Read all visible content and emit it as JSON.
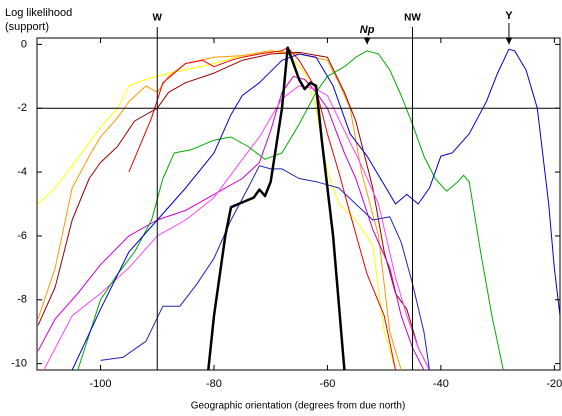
{
  "chart_data": {
    "type": "line",
    "y_label": [
      "Log likelihood",
      "(support)"
    ],
    "x_label": "Geographic orientation (degrees from due north)",
    "xlim": [
      -111.2,
      -19
    ],
    "ylim": [
      -10.2,
      0.2
    ],
    "xticks": [
      -100,
      -80,
      -60,
      -40,
      -20
    ],
    "yticks": [
      0,
      -2,
      -4,
      -6,
      -8,
      -10
    ],
    "hlines": [
      -2
    ],
    "annotations": [
      {
        "label": "W",
        "x": -90,
        "kind": "vline"
      },
      {
        "label": "NW",
        "x": -45,
        "kind": "vline"
      },
      {
        "label": "Np",
        "x": -53,
        "y": 0,
        "kind": "arrow"
      },
      {
        "label": "Y",
        "x": -28,
        "y": 0,
        "kind": "arrow"
      }
    ],
    "series": [
      {
        "color": "#ffff00",
        "x": [
          -111,
          -108,
          -105,
          -100,
          -97,
          -95,
          -92,
          -88,
          -85,
          -80,
          -75,
          -70,
          -67,
          -64,
          -62,
          -60,
          -58,
          -55,
          -52,
          -50,
          -48
        ],
        "values": [
          -5,
          -4.5,
          -3.8,
          -2.6,
          -2.0,
          -1.3,
          -1.1,
          -0.9,
          -0.8,
          -0.6,
          -0.35,
          -0.2,
          -0.3,
          -0.9,
          -2,
          -4,
          -5,
          -5.5,
          -6.3,
          -9,
          -10.2
        ]
      },
      {
        "color": "#ff9900",
        "x": [
          -111,
          -108,
          -105,
          -102,
          -100,
          -97,
          -95,
          -92,
          -90,
          -88,
          -85,
          -80,
          -75,
          -70,
          -65,
          -60,
          -58,
          -56,
          -54,
          -51,
          -49,
          -47
        ],
        "values": [
          -8.6,
          -7,
          -4.5,
          -3.5,
          -2.9,
          -2.3,
          -1.8,
          -1.3,
          -1.5,
          -1,
          -0.6,
          -0.4,
          -0.35,
          -0.2,
          -0.3,
          -0.5,
          -1.2,
          -2,
          -4,
          -6,
          -9,
          -10.2
        ]
      },
      {
        "color": "#990000",
        "x": [
          -111,
          -108,
          -105,
          -102,
          -100,
          -97,
          -94,
          -90,
          -88,
          -85,
          -80,
          -75,
          -70,
          -65,
          -60,
          -57,
          -55,
          -52,
          -50,
          -48,
          -46,
          -44,
          -42
        ],
        "values": [
          -8.8,
          -7.6,
          -5.5,
          -4.2,
          -3.7,
          -3.2,
          -2.4,
          -2,
          -1.5,
          -1.2,
          -0.9,
          -0.5,
          -0.3,
          -0.25,
          -0.4,
          -1.5,
          -2.4,
          -4.5,
          -6.5,
          -7.8,
          -8.3,
          -9.5,
          -10.2
        ]
      },
      {
        "color": "#ee0000",
        "x": [
          -95,
          -91,
          -89,
          -87,
          -85,
          -82,
          -80,
          -77,
          -75,
          -72,
          -70,
          -68,
          -67,
          -65,
          -62,
          -60,
          -58,
          -56,
          -53,
          -50,
          -48
        ],
        "values": [
          -4,
          -2.3,
          -1.2,
          -0.9,
          -0.6,
          -0.5,
          -0.7,
          -0.5,
          -0.4,
          -0.3,
          -0.25,
          -0.2,
          -0.1,
          -0.5,
          -1.4,
          -2.8,
          -4,
          -5.3,
          -7.2,
          -8.5,
          -10.2
        ]
      },
      {
        "color": "#cc00cc",
        "x": [
          -111,
          -108,
          -104,
          -100,
          -95,
          -90,
          -85,
          -80,
          -75,
          -72,
          -70,
          -68,
          -66,
          -64,
          -62,
          -60,
          -57,
          -55,
          -52,
          -49,
          -47,
          -45,
          -43
        ],
        "values": [
          -9.6,
          -8.6,
          -7.8,
          -6.9,
          -6,
          -5.5,
          -5.2,
          -4.7,
          -4.2,
          -3.7,
          -2.7,
          -1.5,
          -1,
          -1.1,
          -1.5,
          -2,
          -3.4,
          -4.2,
          -5.8,
          -7,
          -8.5,
          -9.5,
          -10.2
        ]
      },
      {
        "color": "#ff44ff",
        "x": [
          -110,
          -105,
          -100,
          -95,
          -90,
          -85,
          -80,
          -75,
          -72,
          -70,
          -68,
          -65,
          -62,
          -60,
          -57,
          -54,
          -51,
          -48,
          -46,
          -44,
          -42
        ],
        "values": [
          -10.2,
          -8.5,
          -7.8,
          -7,
          -6,
          -5.5,
          -4.8,
          -3.6,
          -2.9,
          -2.3,
          -1.7,
          -1.3,
          -1.4,
          -1.6,
          -2.7,
          -3.8,
          -5,
          -7.3,
          -8.5,
          -9.5,
          -10.2
        ]
      },
      {
        "color": "#00aa00",
        "x": [
          -104,
          -100,
          -97,
          -94,
          -91,
          -89,
          -87,
          -84,
          -80,
          -77,
          -74,
          -71,
          -68,
          -65,
          -62,
          -60,
          -57,
          -55,
          -53,
          -51,
          -49,
          -47,
          -45,
          -43,
          -41,
          -39,
          -37,
          -36,
          -35,
          -33,
          -31,
          -29
        ],
        "values": [
          -10.2,
          -8,
          -7.2,
          -6.5,
          -5.5,
          -4.2,
          -3.4,
          -3.3,
          -3,
          -2.9,
          -3.2,
          -3.6,
          -3.4,
          -2.5,
          -1.5,
          -1,
          -0.7,
          -0.4,
          -0.2,
          -0.3,
          -0.8,
          -1.6,
          -2.5,
          -3.5,
          -4.2,
          -4.6,
          -4.3,
          -4.1,
          -4.3,
          -6.5,
          -8.5,
          -10.2
        ]
      },
      {
        "color": "#0000cc",
        "x": [
          -105,
          -100,
          -95,
          -90,
          -85,
          -80,
          -77,
          -75,
          -72,
          -68,
          -65,
          -62,
          -59,
          -56,
          -53,
          -50,
          -48,
          -46,
          -44,
          -42,
          -40,
          -38,
          -35,
          -32,
          -30,
          -28,
          -27,
          -25,
          -23,
          -21,
          -20,
          -19
        ],
        "values": [
          -10.2,
          -8.3,
          -6.5,
          -5.5,
          -4.5,
          -3.4,
          -2.2,
          -1.6,
          -1.2,
          -0.5,
          -0.3,
          -0.4,
          -1.3,
          -2.8,
          -3.5,
          -4.4,
          -5,
          -4.7,
          -5,
          -4.5,
          -3.5,
          -3.4,
          -2.8,
          -1.8,
          -0.9,
          -0.15,
          -0.2,
          -0.8,
          -2,
          -5,
          -7,
          -8.5
        ]
      },
      {
        "color": "#2222bb",
        "x": [
          -100,
          -96,
          -92,
          -89,
          -86,
          -83,
          -80,
          -77,
          -74,
          -72,
          -70,
          -68,
          -65,
          -62,
          -60,
          -58,
          -55,
          -52,
          -49,
          -47,
          -45,
          -43,
          -42
        ],
        "values": [
          -9.9,
          -9.8,
          -9.3,
          -8.2,
          -8.2,
          -7.5,
          -6.7,
          -5.5,
          -4.5,
          -3.8,
          -3.9,
          -3.9,
          -4.2,
          -4.3,
          -4.4,
          -4.5,
          -5,
          -5.5,
          -5.4,
          -6.2,
          -7.5,
          -9,
          -10.2
        ]
      },
      {
        "color": "#000000",
        "width": 2.5,
        "x": [
          -81,
          -80,
          -78,
          -77,
          -75,
          -73,
          -72,
          -71,
          -70,
          -68,
          -67,
          -66,
          -65,
          -64,
          -63,
          -62,
          -61,
          -59,
          -57
        ],
        "values": [
          -10.2,
          -8.5,
          -6,
          -5.1,
          -4.95,
          -4.8,
          -4.55,
          -4.75,
          -4.3,
          -2,
          -0.1,
          -0.6,
          -1.1,
          -1.4,
          -1.2,
          -1.3,
          -3,
          -6,
          -10.2
        ]
      }
    ]
  }
}
